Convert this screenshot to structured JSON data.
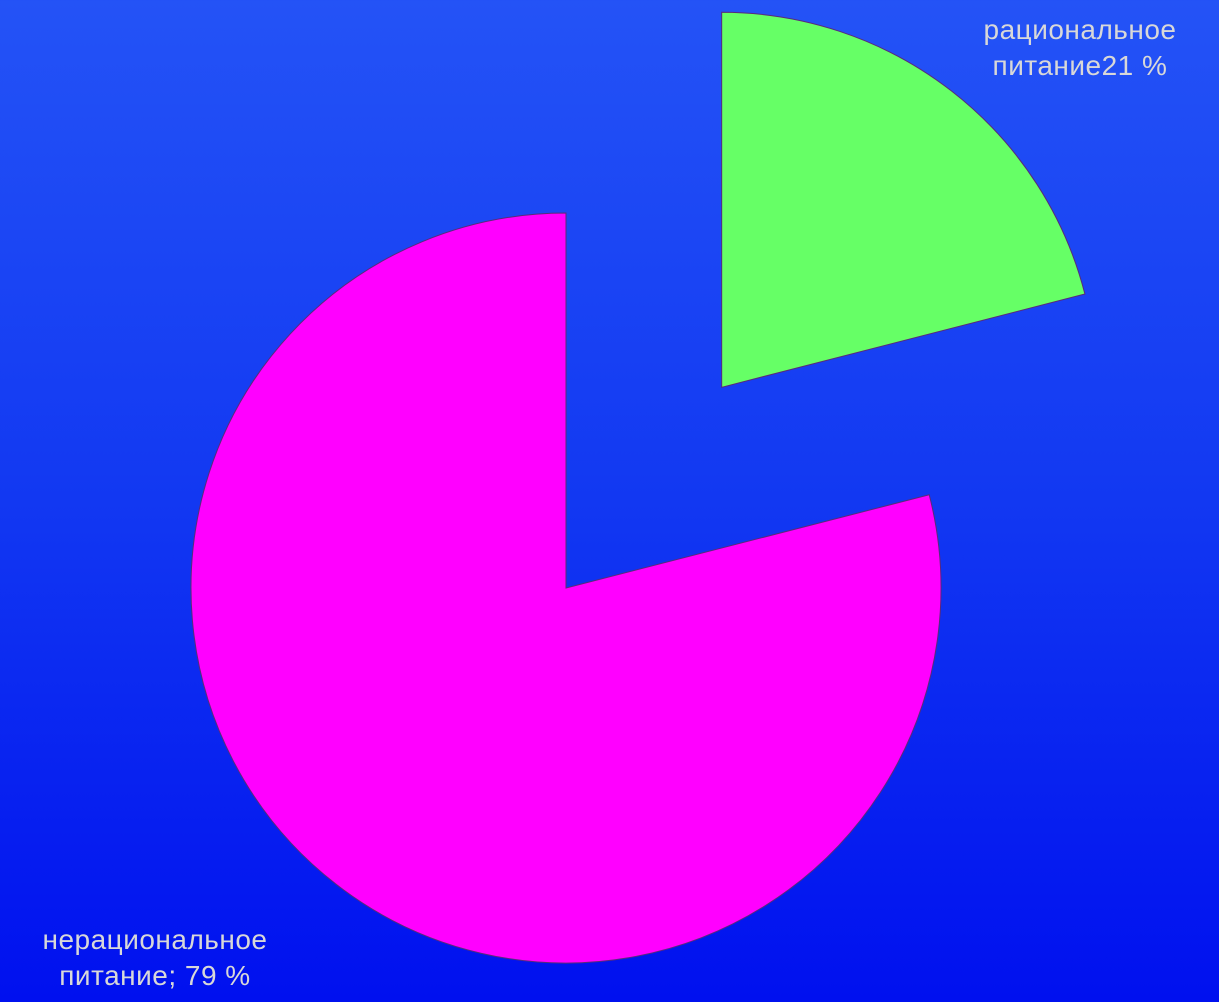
{
  "chart_data": {
    "type": "pie",
    "values": [
      21,
      79
    ],
    "value_labels": [
      "рациональное питание21 %",
      "нерациональное питание; 79 %"
    ],
    "colors": [
      "#66ff66",
      "#ff00ff"
    ]
  }
}
